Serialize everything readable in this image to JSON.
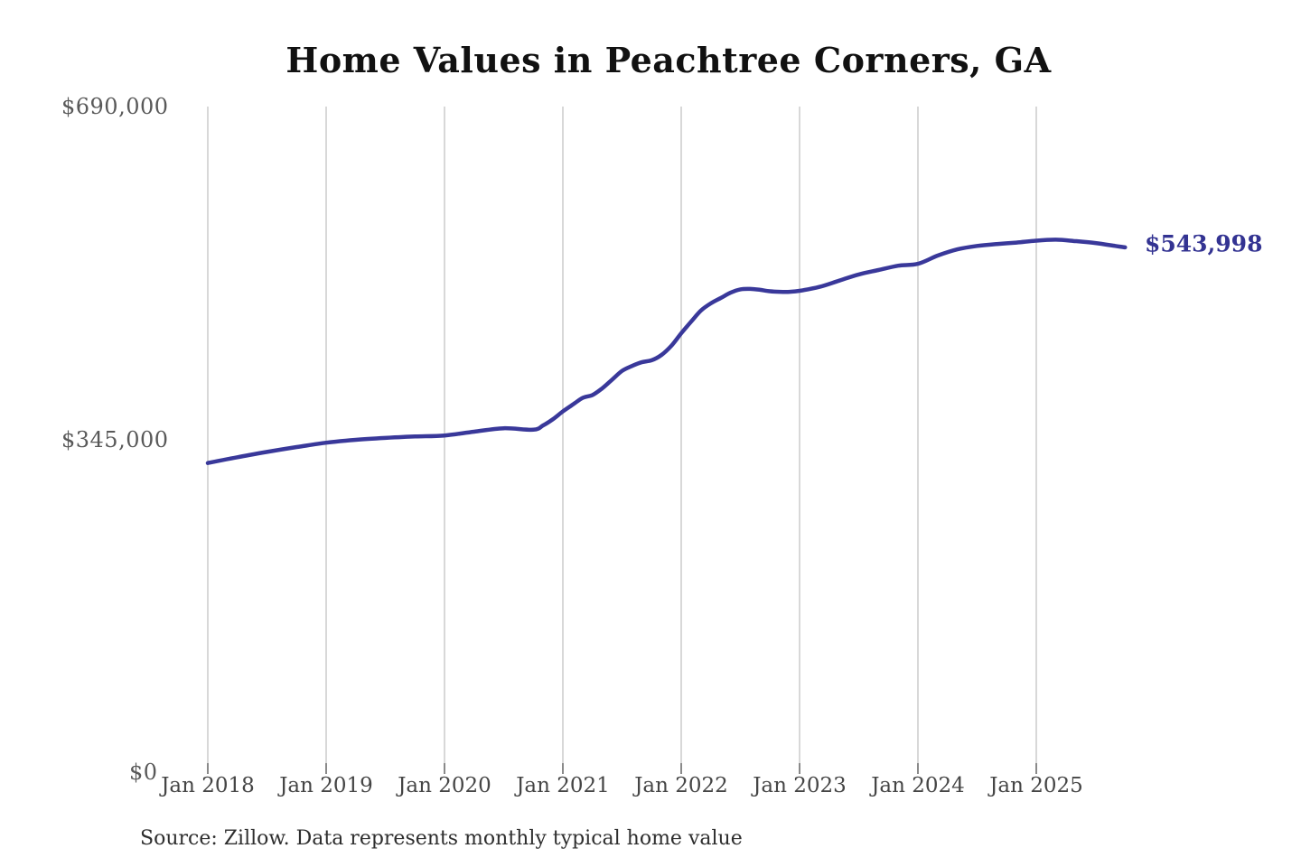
{
  "chart_data": {
    "type": "line",
    "title": "Home Values in Peachtree Corners, GA",
    "source_note": "Source: Zillow. Data represents monthly typical home value",
    "xlabel": "",
    "ylabel": "",
    "ylim": [
      0,
      690000
    ],
    "grid": "vertical",
    "legend_position": "none",
    "axis_colors": {
      "gridline": "#cccccc",
      "tick": "#8a8a8a",
      "y_label": "#595959",
      "x_label": "#454545"
    },
    "x_ticks": [
      "Jan 2018",
      "Jan 2019",
      "Jan 2020",
      "Jan 2021",
      "Jan 2022",
      "Jan 2023",
      "Jan 2024",
      "Jan 2025"
    ],
    "y_ticks": [
      {
        "label": "$0",
        "value": 0
      },
      {
        "label": "$345,000",
        "value": 345000
      },
      {
        "label": "$690,000",
        "value": 690000
      }
    ],
    "series": [
      {
        "name": "Monthly typical home value",
        "color": "#39389a",
        "end_label": "$543,998",
        "end_value": 543998,
        "points": [
          {
            "date": "2018-01",
            "value": 320500
          },
          {
            "date": "2018-04",
            "value": 326500
          },
          {
            "date": "2018-07",
            "value": 332000
          },
          {
            "date": "2018-10",
            "value": 337000
          },
          {
            "date": "2019-01",
            "value": 341500
          },
          {
            "date": "2019-04",
            "value": 344500
          },
          {
            "date": "2019-07",
            "value": 346500
          },
          {
            "date": "2019-10",
            "value": 348000
          },
          {
            "date": "2020-01",
            "value": 349000
          },
          {
            "date": "2020-04",
            "value": 353000
          },
          {
            "date": "2020-07",
            "value": 356500
          },
          {
            "date": "2020-10",
            "value": 355000
          },
          {
            "date": "2020-11",
            "value": 359500
          },
          {
            "date": "2020-12",
            "value": 366000
          },
          {
            "date": "2021-01",
            "value": 374000
          },
          {
            "date": "2021-02",
            "value": 381000
          },
          {
            "date": "2021-03",
            "value": 388000
          },
          {
            "date": "2021-04",
            "value": 391000
          },
          {
            "date": "2021-05",
            "value": 398000
          },
          {
            "date": "2021-06",
            "value": 407000
          },
          {
            "date": "2021-07",
            "value": 416000
          },
          {
            "date": "2021-08",
            "value": 421000
          },
          {
            "date": "2021-09",
            "value": 425000
          },
          {
            "date": "2021-10",
            "value": 427000
          },
          {
            "date": "2021-11",
            "value": 432500
          },
          {
            "date": "2021-12",
            "value": 442000
          },
          {
            "date": "2022-01",
            "value": 455000
          },
          {
            "date": "2022-02",
            "value": 467000
          },
          {
            "date": "2022-03",
            "value": 478500
          },
          {
            "date": "2022-04",
            "value": 486000
          },
          {
            "date": "2022-05",
            "value": 491500
          },
          {
            "date": "2022-06",
            "value": 497000
          },
          {
            "date": "2022-07",
            "value": 500500
          },
          {
            "date": "2022-08",
            "value": 501000
          },
          {
            "date": "2022-09",
            "value": 500000
          },
          {
            "date": "2022-10",
            "value": 498500
          },
          {
            "date": "2022-11",
            "value": 498000
          },
          {
            "date": "2022-12",
            "value": 498000
          },
          {
            "date": "2023-01",
            "value": 499000
          },
          {
            "date": "2023-03",
            "value": 503000
          },
          {
            "date": "2023-05",
            "value": 509500
          },
          {
            "date": "2023-07",
            "value": 516000
          },
          {
            "date": "2023-09",
            "value": 520500
          },
          {
            "date": "2023-11",
            "value": 525000
          },
          {
            "date": "2024-01",
            "value": 527000
          },
          {
            "date": "2024-03",
            "value": 535500
          },
          {
            "date": "2024-05",
            "value": 542000
          },
          {
            "date": "2024-07",
            "value": 545500
          },
          {
            "date": "2024-09",
            "value": 547500
          },
          {
            "date": "2024-11",
            "value": 549000
          },
          {
            "date": "2025-01",
            "value": 551000
          },
          {
            "date": "2025-03",
            "value": 552000
          },
          {
            "date": "2025-05",
            "value": 550500
          },
          {
            "date": "2025-07",
            "value": 548500
          },
          {
            "date": "2025-09",
            "value": 545500
          },
          {
            "date": "2025-10",
            "value": 543998
          }
        ]
      }
    ]
  }
}
